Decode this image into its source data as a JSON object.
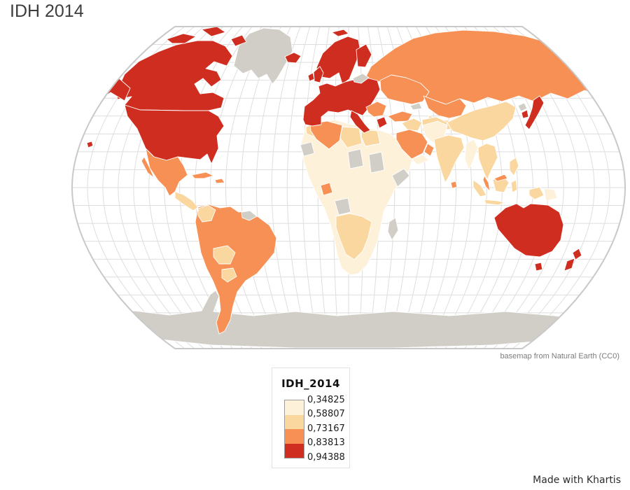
{
  "title": "IDH 2014",
  "map": {
    "attribution": "basemap from Natural Earth (CC0)",
    "palette": {
      "no_data": "#d0cec6",
      "classes": [
        "#fdf1da",
        "#fbd7a0",
        "#f79054",
        "#cf2d1f"
      ]
    },
    "graticule_color": "#dedede",
    "outline_color": "#c9c9c9",
    "regions": {
      "canada": "c4",
      "arctic-island-1": "c4",
      "arctic-island-2": "c4",
      "arctic-island-3": "c4",
      "alaska": "c4",
      "usa": "c4",
      "hawaii": "c4",
      "iceland": "c4",
      "svalbard": "c4",
      "scandinavia": "c4",
      "finland": "c4",
      "uk": "c4",
      "ireland": "c4",
      "europe-west": "c4",
      "italy": "c4",
      "greece": "c4",
      "south-korea": "c4",
      "japan": "c4",
      "australia": "c4",
      "tasmania": "c4",
      "nz-north": "c4",
      "nz-south": "c4",
      "mexico": "c3",
      "baja-california": "c3",
      "cuba": "c3",
      "hispaniola": "c3",
      "south-america": "c3",
      "algeria": "c3",
      "gabon": "c3",
      "saudi-arabia": "c3",
      "oman": "c3",
      "turkey": "c3",
      "balkans": "c3",
      "ukraine-belarus": "c3",
      "russia": "c3",
      "russia-east-fragment": "c3",
      "kazakhstan": "c3",
      "sri-lanka": "c3",
      "malay-peninsula": "c3",
      "malaysia-borneo": "c3",
      "central-america": "c2",
      "colombia": "c2",
      "bolivia": "c2",
      "paraguay": "c2",
      "morocco": "c2",
      "libya": "c2",
      "egypt": "c2",
      "southern-africa": "c2",
      "iraq-syria": "c2",
      "iran": "c2",
      "central-asia": "c2",
      "china": "c2",
      "india": "c2",
      "indochina": "c2",
      "philippines": "c2",
      "sumatra": "c2",
      "java": "c2",
      "borneo": "c2",
      "sulawesi": "c2",
      "west-papua": "c2",
      "africa": "c1",
      "yemen": "c1",
      "afghanistan-pakistan": "c1",
      "myanmar": "c1",
      "png": "c1",
      "greenland": "nodata",
      "guyanas": "nodata",
      "mauritania": "nodata",
      "chad": "nodata",
      "sudan": "nodata",
      "somalia": "nodata",
      "angola": "nodata",
      "madagascar": "nodata",
      "baltics": "nodata",
      "caucasus": "nodata",
      "north-korea": "nodata",
      "antarctica": "nodata"
    }
  },
  "legend": {
    "title": "IDH_2014",
    "values": [
      "0,34825",
      "0,58807",
      "0,73167",
      "0,83813",
      "0,94388"
    ]
  },
  "footer": {
    "credit": "Made with Khartis"
  },
  "chart_data": {
    "type": "choropleth_map",
    "title": "IDH 2014",
    "variable": "IDH_2014",
    "class_breaks": [
      0.34825,
      0.58807,
      0.73167,
      0.83813,
      0.94388
    ],
    "classes": [
      {
        "range": "0,34825 - 0,58807",
        "color": "#fdf1da"
      },
      {
        "range": "0,58807 - 0,73167",
        "color": "#fbd7a0"
      },
      {
        "range": "0,73167 - 0,83813",
        "color": "#f79054"
      },
      {
        "range": "0,83813 - 0,94388",
        "color": "#cf2d1f"
      }
    ],
    "no_data_color": "#d0cec6",
    "graticule_step_deg": 10,
    "legend_position": "bottom-center"
  }
}
